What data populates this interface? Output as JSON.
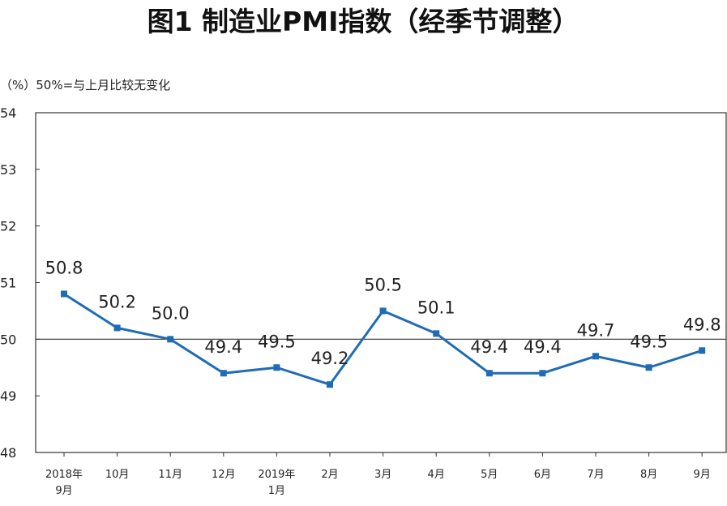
{
  "chart_data": {
    "type": "line",
    "title": "图1 制造业PMI指数（经季节调整）",
    "unit_note": "（%）50%=与上月比较无变化",
    "categories": [
      "2018年\n9月",
      "10月",
      "11月",
      "12月",
      "2019年\n1月",
      "2月",
      "3月",
      "4月",
      "5月",
      "6月",
      "7月",
      "8月",
      "9月"
    ],
    "values": [
      50.8,
      50.2,
      50.0,
      49.4,
      49.5,
      49.2,
      50.5,
      50.1,
      49.4,
      49.4,
      49.7,
      49.5,
      49.8
    ],
    "data_labels": [
      "50.8",
      "50.2",
      "50.0",
      "49.4",
      "49.5",
      "49.2",
      "50.5",
      "50.1",
      "49.4",
      "49.4",
      "49.7",
      "49.5",
      "49.8"
    ],
    "yticks": [
      "48",
      "49",
      "50",
      "51",
      "52",
      "53",
      "54"
    ],
    "ylim": [
      48,
      54
    ],
    "reference_line": 50,
    "grid": false,
    "legend": "none",
    "line_color": "#1f6cb4",
    "axis_color": "#333333"
  }
}
